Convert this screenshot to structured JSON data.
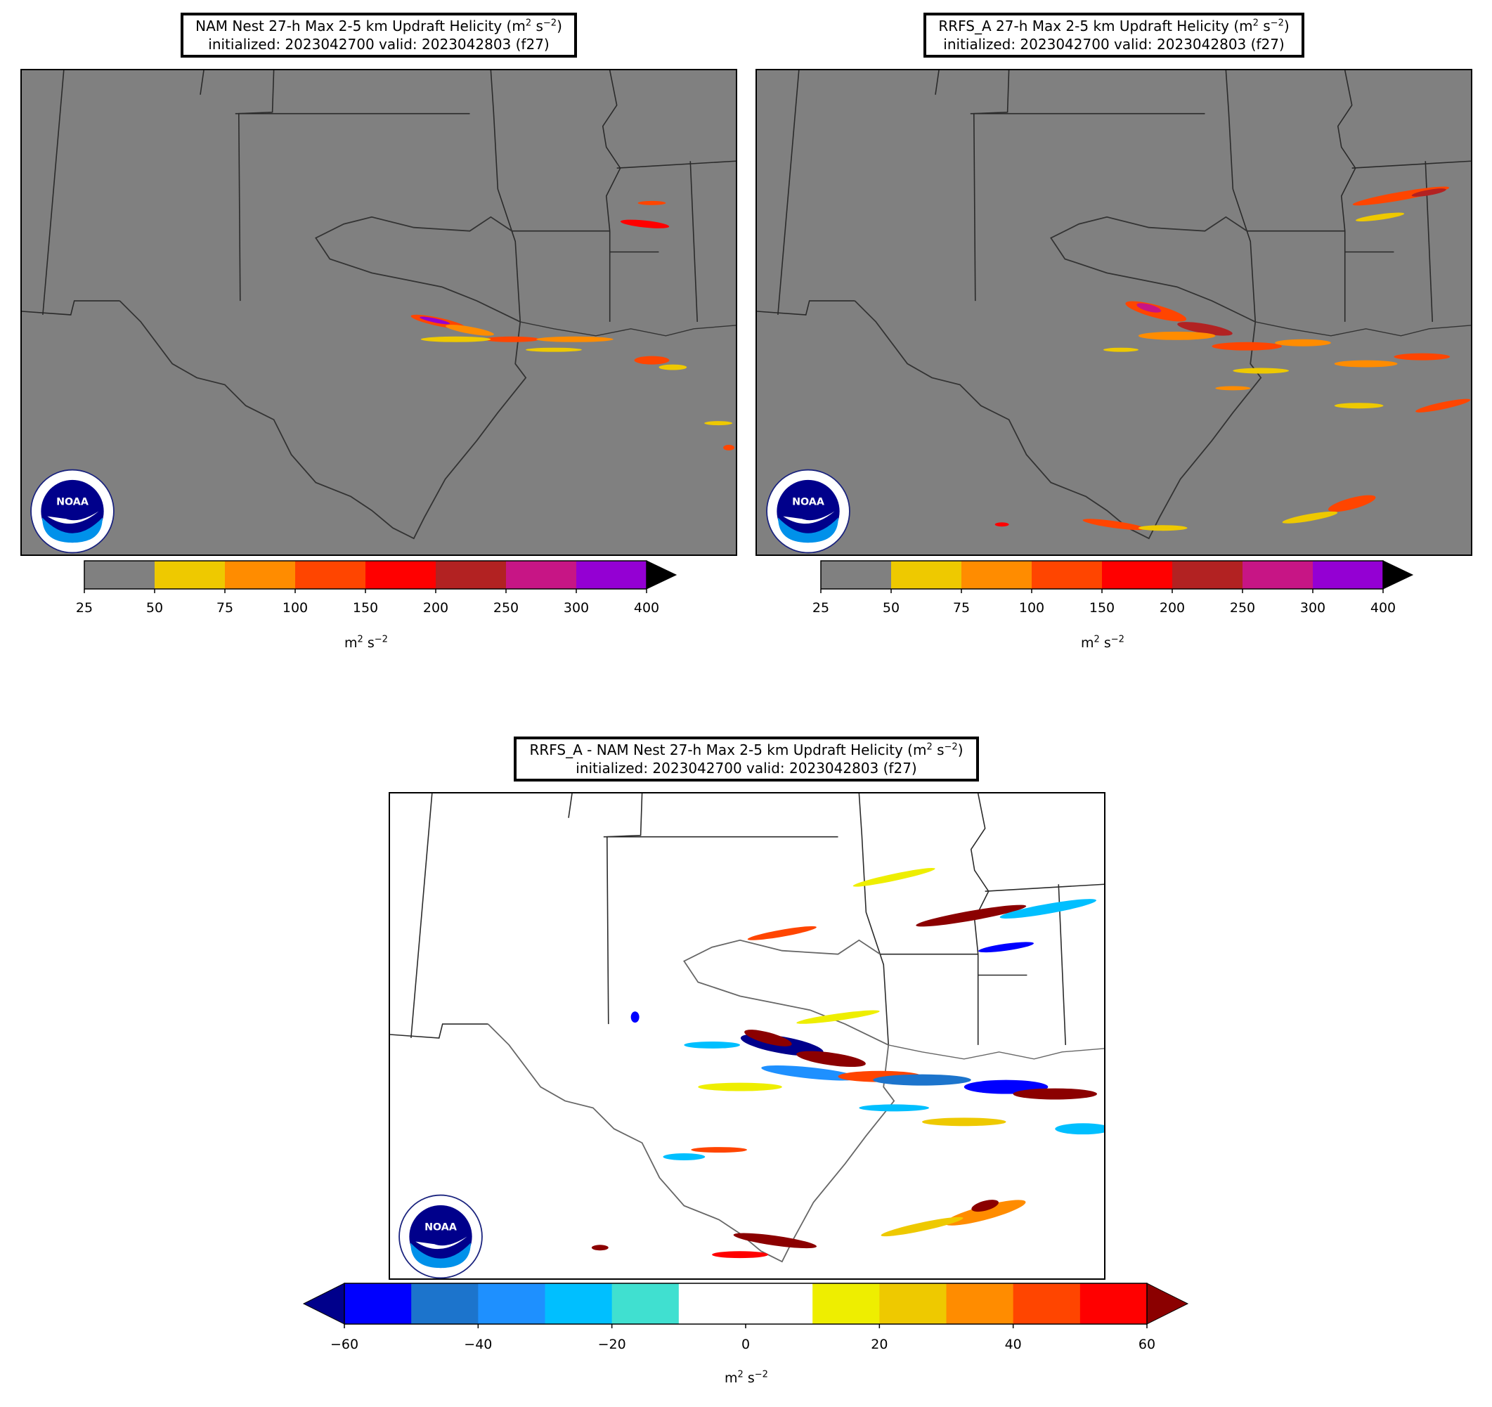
{
  "panels": {
    "nam": {
      "title_line1_pre": "NAM Nest 27-h Max 2-5 km Updraft Helicity (m",
      "title_sup1": "2",
      "title_mid": " s",
      "title_sup2": "−2",
      "title_post": ")",
      "title_line2": "initialized: 2023042700 valid: 2023042803 (f27)"
    },
    "rrfs": {
      "title_line1_pre": "RRFS_A 27-h Max 2-5 km Updraft Helicity (m",
      "title_sup1": "2",
      "title_mid": " s",
      "title_sup2": "−2",
      "title_post": ")",
      "title_line2": "initialized: 2023042700 valid: 2023042803 (f27)"
    },
    "diff": {
      "title_line1_pre": "RRFS_A - NAM Nest 27-h Max 2-5 km Updraft Helicity (m",
      "title_sup1": "2",
      "title_mid": " s",
      "title_sup2": "−2",
      "title_post": ")",
      "title_line2": "initialized: 2023042700 valid: 2023042803 (f27)"
    }
  },
  "colorbars": {
    "uh": {
      "ticks": [
        "25",
        "50",
        "75",
        "100",
        "150",
        "200",
        "250",
        "300",
        "400"
      ],
      "colors": [
        "#808080",
        "#eec900",
        "#ff8c00",
        "#ff4500",
        "#ff0000",
        "#b22222",
        "#c71585",
        "#9400d3"
      ],
      "extend_color": "#000000",
      "unit_pre": "m",
      "unit_sup1": "2",
      "unit_mid": " s",
      "unit_sup2": "−2"
    },
    "diff": {
      "ticks": [
        "−60",
        "−40",
        "−20",
        "0",
        "20",
        "40",
        "60"
      ],
      "colors": [
        "#0000ff",
        "#1c74cc",
        "#1e90ff",
        "#00bfff",
        "#40e0d0",
        "#ffffff",
        "#ffffff",
        "#eeee00",
        "#eec900",
        "#ff8c00",
        "#ff4500",
        "#ff0000"
      ],
      "extend_low_color": "#00008b",
      "extend_high_color": "#8b0000",
      "unit_pre": "m",
      "unit_sup1": "2",
      "unit_mid": " s",
      "unit_sup2": "−2"
    }
  },
  "logo": {
    "text": "NOAA",
    "ring_text": "NATIONAL OCEANIC AND ATMOSPHERIC ADMINISTRATION • U.S. DEPARTMENT OF COMMERCE"
  },
  "colors": {
    "map_bg_gray": "#808080",
    "map_bg_white": "#ffffff",
    "border_line": "#2a2a2a"
  }
}
